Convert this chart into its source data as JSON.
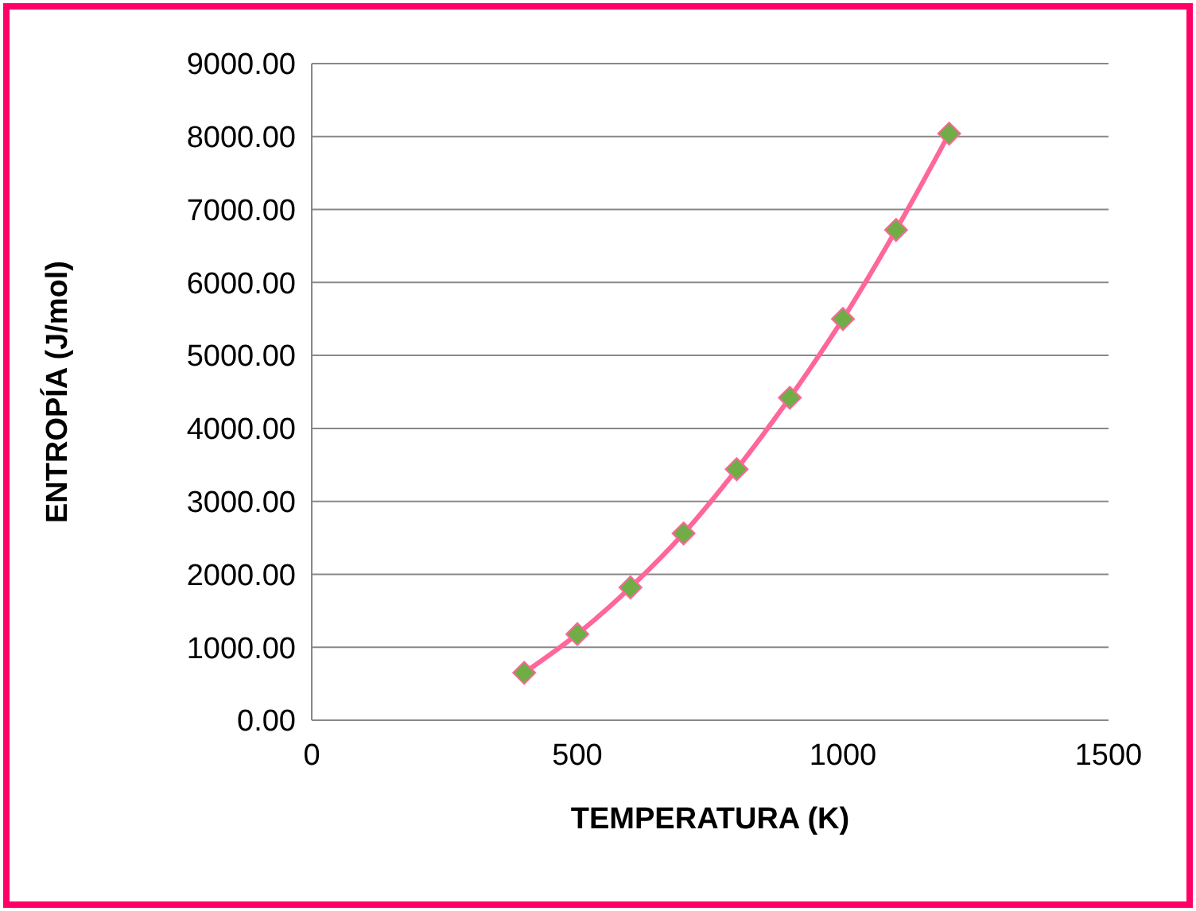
{
  "chart_data": {
    "type": "line",
    "xlabel": "TEMPERATURA (K)",
    "ylabel": "ENTROPÍA (J/mol)",
    "x": [
      400,
      500,
      600,
      700,
      800,
      900,
      1000,
      1100,
      1200
    ],
    "series": [
      {
        "color": "#ff6699",
        "values": [
          650,
          1180,
          1820,
          2560,
          3440,
          4420,
          5500,
          6720,
          8040
        ]
      }
    ],
    "xlim": [
      0,
      1500
    ],
    "xticks": [
      0,
      500,
      1000,
      1500
    ],
    "ylim": [
      0,
      9000
    ],
    "yticks": [
      {
        "value": 0,
        "label": "0.00"
      },
      {
        "value": 1000,
        "label": "1000.00"
      },
      {
        "value": 2000,
        "label": "2000.00"
      },
      {
        "value": 3000,
        "label": "3000.00"
      },
      {
        "value": 4000,
        "label": "4000.00"
      },
      {
        "value": 5000,
        "label": "5000.00"
      },
      {
        "value": 6000,
        "label": "6000.00"
      },
      {
        "value": 7000,
        "label": "7000.00"
      },
      {
        "value": 8000,
        "label": "8000.00"
      },
      {
        "value": 9000,
        "label": "9000.00"
      }
    ],
    "grid": "y",
    "marker": "diamond",
    "line_style": "solid"
  }
}
